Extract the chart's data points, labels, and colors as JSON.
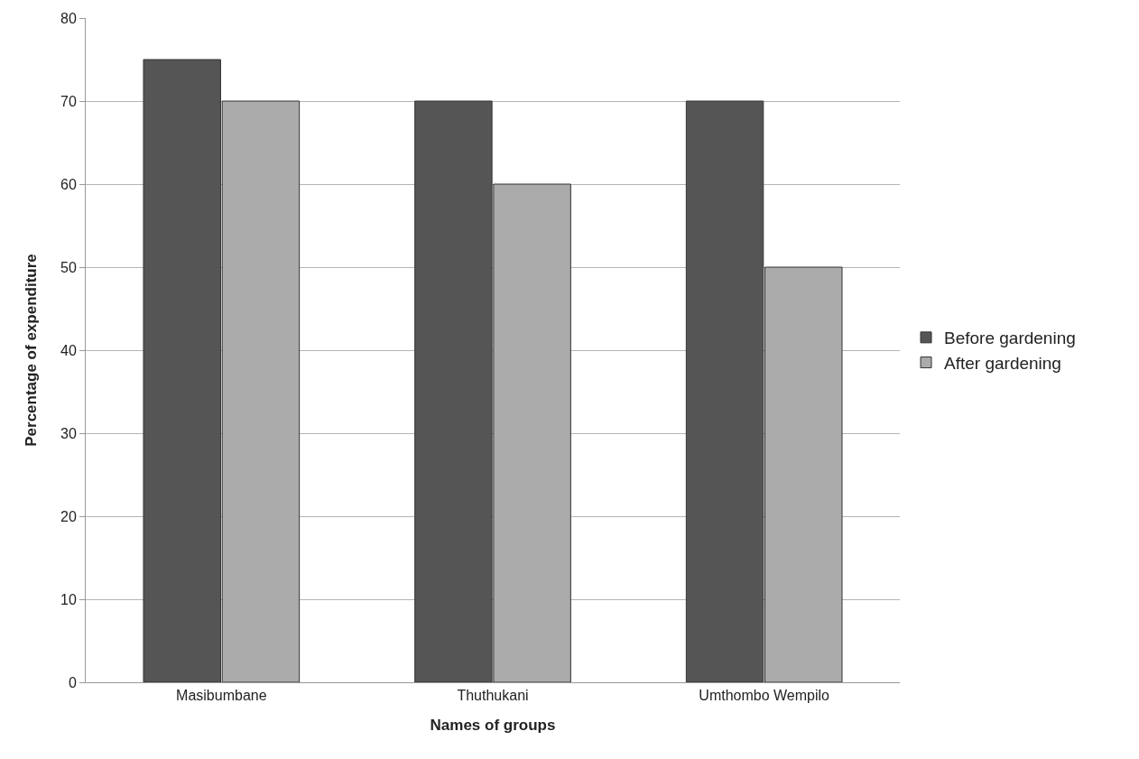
{
  "chart_data": {
    "type": "bar",
    "xlabel": "Names of groups",
    "ylabel": "Percentage of expenditure",
    "categories": [
      "Masibumbane",
      "Thuthukani",
      "Umthombo Wempilo"
    ],
    "series": [
      {
        "name": "Before gardening",
        "color": "#555555",
        "values": [
          75,
          70,
          70
        ]
      },
      {
        "name": "After gardening",
        "color": "#ababab",
        "values": [
          70,
          60,
          50
        ]
      }
    ],
    "ylim": [
      0,
      80
    ],
    "yticks": [
      0,
      10,
      20,
      30,
      40,
      50,
      60,
      70,
      80
    ],
    "grid": "y",
    "legend": "right"
  }
}
